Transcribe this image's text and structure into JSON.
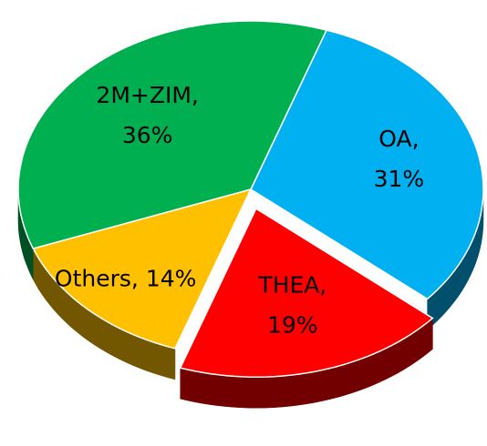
{
  "chart_data": {
    "type": "pie",
    "categories": [
      "OA,",
      "THEA,",
      "Others,",
      "2M+ZIM,"
    ],
    "values": [
      31,
      19,
      14,
      36
    ],
    "value_labels": [
      "31%",
      "19%",
      "14%",
      "36%"
    ],
    "colors": [
      "#00b0f0",
      "#ff0000",
      "#ffc000",
      "#00b050"
    ],
    "exploded": [
      false,
      true,
      false,
      false
    ]
  }
}
